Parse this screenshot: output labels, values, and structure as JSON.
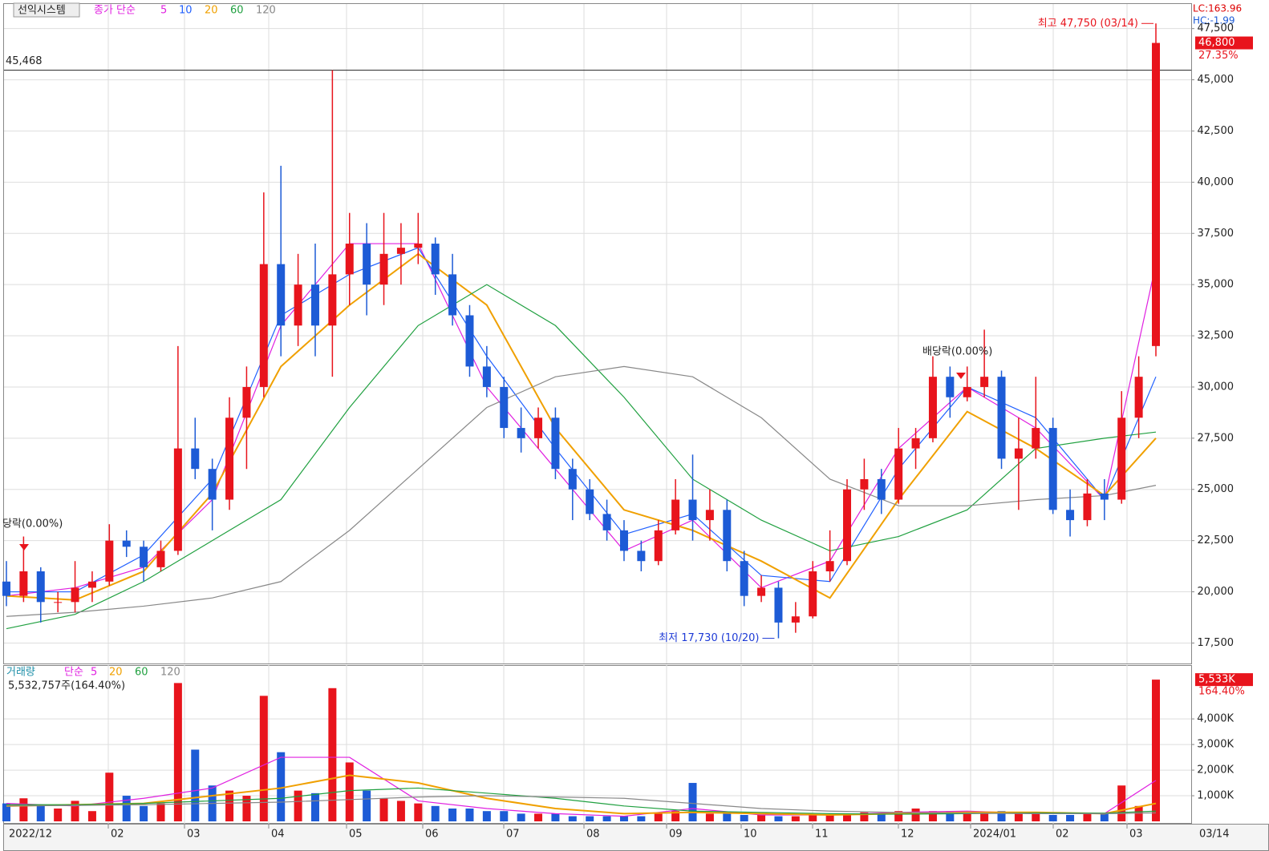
{
  "chart_data": {
    "type": "candlestick",
    "title": "선익시스템",
    "legend_label": "종가 단순",
    "up_color": "#e8141c",
    "down_color": "#1d5bd6",
    "candles": [
      {
        "open": 20500,
        "high": 21500,
        "low": 19300,
        "close": 19800
      },
      {
        "open": 19800,
        "high": 22700,
        "low": 19500,
        "close": 21000
      },
      {
        "open": 21000,
        "high": 21200,
        "low": 18500,
        "close": 19500
      },
      {
        "open": 19500,
        "high": 20000,
        "low": 19000,
        "close": 19500
      },
      {
        "open": 19500,
        "high": 21500,
        "low": 19000,
        "close": 20200
      },
      {
        "open": 20200,
        "high": 21000,
        "low": 19500,
        "close": 20500
      },
      {
        "open": 20500,
        "high": 23300,
        "low": 20300,
        "close": 22500
      },
      {
        "open": 22500,
        "high": 23000,
        "low": 21700,
        "close": 22200
      },
      {
        "open": 22200,
        "high": 22500,
        "low": 20500,
        "close": 21200
      },
      {
        "open": 21200,
        "high": 22500,
        "low": 21000,
        "close": 22000
      },
      {
        "open": 22000,
        "high": 32000,
        "low": 21800,
        "close": 27000
      },
      {
        "open": 27000,
        "high": 28500,
        "low": 25500,
        "close": 26000
      },
      {
        "open": 26000,
        "high": 26500,
        "low": 23000,
        "close": 24500
      },
      {
        "open": 24500,
        "high": 29500,
        "low": 24000,
        "close": 28500
      },
      {
        "open": 28500,
        "high": 31000,
        "low": 26000,
        "close": 30000
      },
      {
        "open": 30000,
        "high": 39500,
        "low": 29500,
        "close": 36000
      },
      {
        "open": 36000,
        "high": 40800,
        "low": 31500,
        "close": 33000
      },
      {
        "open": 33000,
        "high": 36500,
        "low": 32000,
        "close": 35000
      },
      {
        "open": 35000,
        "high": 37000,
        "low": 31500,
        "close": 33000
      },
      {
        "open": 33000,
        "high": 45468,
        "low": 30500,
        "close": 35500
      },
      {
        "open": 35500,
        "high": 38500,
        "low": 34000,
        "close": 37000
      },
      {
        "open": 37000,
        "high": 38000,
        "low": 33500,
        "close": 35000
      },
      {
        "open": 35000,
        "high": 38500,
        "low": 34000,
        "close": 36500
      },
      {
        "open": 36500,
        "high": 38000,
        "low": 35000,
        "close": 36800
      },
      {
        "open": 36800,
        "high": 38500,
        "low": 36000,
        "close": 37000
      },
      {
        "open": 37000,
        "high": 37300,
        "low": 34500,
        "close": 35500
      },
      {
        "open": 35500,
        "high": 36500,
        "low": 33000,
        "close": 33500
      },
      {
        "open": 33500,
        "high": 34000,
        "low": 30500,
        "close": 31000
      },
      {
        "open": 31000,
        "high": 32000,
        "low": 29500,
        "close": 30000
      },
      {
        "open": 30000,
        "high": 30500,
        "low": 27500,
        "close": 28000
      },
      {
        "open": 28000,
        "high": 29000,
        "low": 26800,
        "close": 27500
      },
      {
        "open": 27500,
        "high": 29000,
        "low": 27000,
        "close": 28500
      },
      {
        "open": 28500,
        "high": 29000,
        "low": 25500,
        "close": 26000
      },
      {
        "open": 26000,
        "high": 26500,
        "low": 23500,
        "close": 25000
      },
      {
        "open": 25000,
        "high": 25500,
        "low": 23500,
        "close": 23800
      },
      {
        "open": 23800,
        "high": 24500,
        "low": 22500,
        "close": 23000
      },
      {
        "open": 23000,
        "high": 23500,
        "low": 21500,
        "close": 22000
      },
      {
        "open": 22000,
        "high": 22500,
        "low": 21000,
        "close": 21500
      },
      {
        "open": 21500,
        "high": 23500,
        "low": 21300,
        "close": 23000
      },
      {
        "open": 23000,
        "high": 25500,
        "low": 22800,
        "close": 24500
      },
      {
        "open": 24500,
        "high": 26700,
        "low": 22500,
        "close": 23500
      },
      {
        "open": 23500,
        "high": 25000,
        "low": 22500,
        "close": 24000
      },
      {
        "open": 24000,
        "high": 24500,
        "low": 21000,
        "close": 21500
      },
      {
        "open": 21500,
        "high": 22000,
        "low": 19300,
        "close": 19800
      },
      {
        "open": 19800,
        "high": 20800,
        "low": 19500,
        "close": 20200
      },
      {
        "open": 20200,
        "high": 20500,
        "low": 17730,
        "close": 18500
      },
      {
        "open": 18500,
        "high": 19500,
        "low": 18000,
        "close": 18800
      },
      {
        "open": 18800,
        "high": 21500,
        "low": 18700,
        "close": 21000
      },
      {
        "open": 21000,
        "high": 23000,
        "low": 20500,
        "close": 21500
      },
      {
        "open": 21500,
        "high": 25500,
        "low": 21300,
        "close": 25000
      },
      {
        "open": 25000,
        "high": 26500,
        "low": 24000,
        "close": 25500
      },
      {
        "open": 25500,
        "high": 26000,
        "low": 23800,
        "close": 24500
      },
      {
        "open": 24500,
        "high": 28000,
        "low": 24300,
        "close": 27000
      },
      {
        "open": 27000,
        "high": 28000,
        "low": 26000,
        "close": 27500
      },
      {
        "open": 27500,
        "high": 31500,
        "low": 27300,
        "close": 30500
      },
      {
        "open": 30500,
        "high": 31000,
        "low": 28500,
        "close": 29500
      },
      {
        "open": 29500,
        "high": 31000,
        "low": 29300,
        "close": 30000
      },
      {
        "open": 30000,
        "high": 32800,
        "low": 29500,
        "close": 30500
      },
      {
        "open": 30500,
        "high": 30800,
        "low": 26000,
        "close": 26500
      },
      {
        "open": 26500,
        "high": 28500,
        "low": 24000,
        "close": 27000
      },
      {
        "open": 27000,
        "high": 30500,
        "low": 26500,
        "close": 28000
      },
      {
        "open": 28000,
        "high": 28500,
        "low": 23800,
        "close": 24000
      },
      {
        "open": 24000,
        "high": 25000,
        "low": 22700,
        "close": 23500
      },
      {
        "open": 23500,
        "high": 25500,
        "low": 23200,
        "close": 24800
      },
      {
        "open": 24800,
        "high": 25500,
        "low": 23500,
        "close": 24500
      },
      {
        "open": 24500,
        "high": 29800,
        "low": 24300,
        "close": 28500
      },
      {
        "open": 28500,
        "high": 31500,
        "low": 27500,
        "close": 30500
      },
      {
        "open": 32000,
        "high": 47750,
        "low": 31500,
        "close": 46800
      }
    ],
    "series": [
      {
        "name": "5",
        "color": "#e020e0",
        "values": [
          19800,
          20200,
          21200,
          24500,
          33000,
          37000,
          37000,
          30000,
          26000,
          22000,
          23500,
          20200,
          21500,
          27000,
          30000,
          28000,
          24500,
          36000
        ]
      },
      {
        "name": "10",
        "color": "#2060ff",
        "values": [
          20000,
          20000,
          21800,
          25500,
          33500,
          35500,
          36800,
          31500,
          27000,
          22800,
          23800,
          20800,
          20500,
          26000,
          30000,
          28500,
          24500,
          30500
        ]
      },
      {
        "name": "20",
        "color": "#f0a000",
        "values": [
          19800,
          19600,
          21000,
          24800,
          31000,
          34000,
          36500,
          34000,
          28000,
          24000,
          23000,
          21500,
          19700,
          24500,
          28800,
          27000,
          24700,
          27500
        ]
      },
      {
        "name": "60",
        "color": "#20a040",
        "values": [
          18200,
          18900,
          20500,
          22500,
          24500,
          29000,
          33000,
          35000,
          33000,
          29500,
          25500,
          23500,
          22000,
          22700,
          24000,
          27000,
          27500,
          27800
        ]
      },
      {
        "name": "120",
        "color": "#888888",
        "values": [
          18800,
          19000,
          19300,
          19700,
          20500,
          23000,
          26000,
          29000,
          30500,
          31000,
          30500,
          28500,
          25500,
          24200,
          24200,
          24500,
          24700,
          25200
        ]
      }
    ],
    "ylim": [
      16500,
      48700
    ],
    "yticks": [
      {
        "value": 17500,
        "label": "17,500"
      },
      {
        "value": 20000,
        "label": "20,000"
      },
      {
        "value": 22500,
        "label": "22,500"
      },
      {
        "value": 25000,
        "label": "25,000"
      },
      {
        "value": 27500,
        "label": "27,500"
      },
      {
        "value": 30000,
        "label": "30,000"
      },
      {
        "value": 32500,
        "label": "32,500"
      },
      {
        "value": 35000,
        "label": "35,000"
      },
      {
        "value": 37500,
        "label": "37,500"
      },
      {
        "value": 40000,
        "label": "40,000"
      },
      {
        "value": 42500,
        "label": "42,500"
      },
      {
        "value": 45000,
        "label": "45,000"
      },
      {
        "value": 47500,
        "label": "47,500"
      }
    ],
    "reference_line": {
      "value": 45468,
      "label": "45,468"
    },
    "high_note": {
      "value": 47750,
      "label": "최고 47,750 (03/14)"
    },
    "low_note": {
      "value": 17730,
      "label": "최저 17,730 (10/20)"
    },
    "ex_dividend_labels": [
      "당락(0.00%)",
      "배당락(0.00%)"
    ],
    "last": {
      "value": 46800,
      "label": "46,800",
      "change_label": "27.35%"
    },
    "lc_label": "LC:163.96",
    "hc_label": "HC:-1.99",
    "x_labels": [
      "2022/12",
      "02",
      "03",
      "04",
      "05",
      "06",
      "07",
      "08",
      "09",
      "10",
      "11",
      "12",
      "2024/01",
      "02",
      "03"
    ],
    "x_end_label": "03/14"
  },
  "volume_chart": {
    "type": "bar",
    "title": "거래량",
    "legend_label": "단순",
    "values": [
      700,
      900,
      600,
      500,
      800,
      400,
      1900,
      1000,
      600,
      700,
      5400,
      2800,
      1400,
      1200,
      1000,
      4900,
      2700,
      1200,
      1100,
      5200,
      2300,
      1200,
      900,
      800,
      700,
      600,
      500,
      500,
      400,
      400,
      300,
      300,
      300,
      200,
      200,
      200,
      200,
      200,
      300,
      400,
      1500,
      300,
      300,
      250,
      250,
      200,
      200,
      250,
      250,
      300,
      350,
      300,
      400,
      500,
      400,
      400,
      400,
      350,
      400,
      300,
      300,
      250,
      250,
      300,
      300,
      1400,
      600,
      5533
    ],
    "series": [
      {
        "name": "5",
        "color": "#e020e0",
        "values": [
          700,
          600,
          900,
          1300,
          2500,
          2500,
          800,
          500,
          300,
          200,
          500,
          250,
          250,
          350,
          400,
          300,
          300,
          1600
        ]
      },
      {
        "name": "20",
        "color": "#f0a000",
        "values": [
          600,
          650,
          700,
          1000,
          1300,
          1800,
          1500,
          900,
          500,
          300,
          350,
          300,
          250,
          300,
          350,
          350,
          300,
          700
        ]
      },
      {
        "name": "60",
        "color": "#20a040",
        "values": [
          650,
          650,
          700,
          800,
          900,
          1200,
          1300,
          1100,
          900,
          600,
          400,
          350,
          300,
          280,
          300,
          330,
          320,
          400
        ]
      },
      {
        "name": "120",
        "color": "#888888",
        "values": [
          600,
          620,
          650,
          700,
          750,
          850,
          950,
          1000,
          950,
          900,
          700,
          500,
          400,
          350,
          320,
          300,
          300,
          330
        ]
      }
    ],
    "summary_label": "5,532,757주(164.40%)",
    "last": {
      "value": 5533,
      "label": "5,533K",
      "change_label": "164.40%"
    },
    "ylim": [
      0,
      6100
    ],
    "yticks": [
      {
        "value": 1000,
        "label": "1,000K"
      },
      {
        "value": 2000,
        "label": "2,000K"
      },
      {
        "value": 3000,
        "label": "3,000K"
      },
      {
        "value": 4000,
        "label": "4,000K"
      }
    ]
  }
}
